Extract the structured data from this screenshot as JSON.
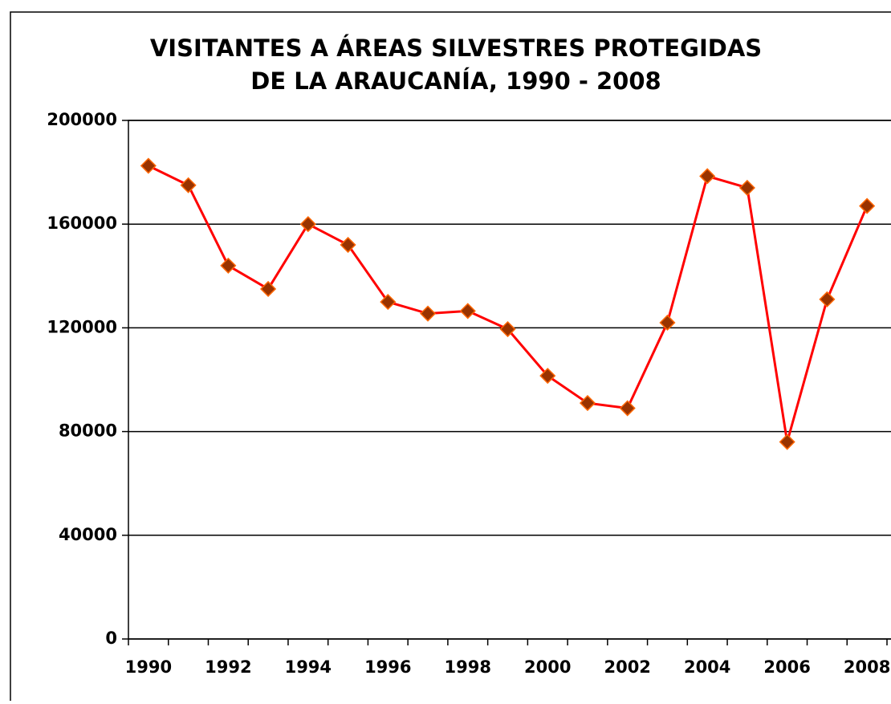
{
  "chart_data": {
    "type": "line",
    "title": [
      "VISITANTES A ÁREAS SILVESTRES PROTEGIDAS",
      "DE LA ARAUCANÍA, 1990 - 2008"
    ],
    "categories": [
      "1990",
      null,
      "1992",
      null,
      "1994",
      null,
      "1996",
      null,
      "1998",
      null,
      "2000",
      null,
      "2002",
      null,
      "2004",
      null,
      "2006",
      null,
      "2008"
    ],
    "series": [
      {
        "color": "#ff0000",
        "marker_fill": "#993300",
        "marker_edge": "#ff6600",
        "values": [
          182500,
          175000,
          144000,
          135000,
          160000,
          152000,
          130000,
          125500,
          126500,
          119500,
          101500,
          91000,
          89000,
          122000,
          178500,
          174000,
          76000,
          131000,
          167000
        ]
      }
    ],
    "ylim": [
      0,
      200000
    ],
    "yticks": [
      0,
      40000,
      80000,
      120000,
      160000,
      200000
    ],
    "grid": true
  }
}
